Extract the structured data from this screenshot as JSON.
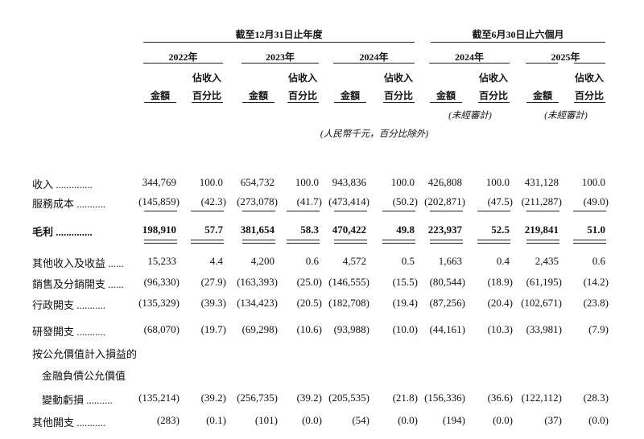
{
  "header": {
    "group_full_year": "截至12月31日止年度",
    "group_half_year": "截至6月30日止六個月",
    "years": [
      "2022年",
      "2023年",
      "2024年",
      "2024年",
      "2025年"
    ],
    "amount_label": "金額",
    "pct_label_line1": "佔收入",
    "pct_label_line2": "百分比",
    "unaudited": "(未經審計)",
    "unit_note": "(人民幣千元，百分比除外)"
  },
  "rows": [
    {
      "label": "收入 ..............",
      "values": [
        "344,769",
        "100.0",
        "654,732",
        "100.0",
        "943,836",
        "100.0",
        "426,808",
        "100.0",
        "431,128",
        "100.0"
      ]
    },
    {
      "label": "服務成本 ...........",
      "values": [
        "(145,859)",
        "(42.3)",
        "(273,078)",
        "(41.7)",
        "(473,414)",
        "(50.2)",
        "(202,871)",
        "(47.5)",
        "(211,287)",
        "(49.0)"
      ]
    },
    {
      "label": "毛利 ..............",
      "bold": true,
      "values": [
        "198,910",
        "57.7",
        "381,654",
        "58.3",
        "470,422",
        "49.8",
        "223,937",
        "52.5",
        "219,841",
        "51.0"
      ]
    },
    {
      "label": "其他收入及收益 ......",
      "values": [
        "15,233",
        "4.4",
        "4,200",
        "0.6",
        "4,572",
        "0.5",
        "1,663",
        "0.4",
        "2,435",
        "0.6"
      ]
    },
    {
      "label": "銷售及分銷開支 ......",
      "values": [
        "(96,330)",
        "(27.9)",
        "(163,393)",
        "(25.0)",
        "(146,555)",
        "(15.5)",
        "(80,544)",
        "(18.9)",
        "(61,195)",
        "(14.2)"
      ]
    },
    {
      "label": "行政開支 ...........",
      "values": [
        "(135,329)",
        "(39.3)",
        "(134,423)",
        "(20.5)",
        "(182,708)",
        "(19.4)",
        "(87,256)",
        "(20.4)",
        "(102,671)",
        "(23.8)"
      ]
    },
    {
      "label": "研發開支 ...........",
      "values": [
        "(68,070)",
        "(19.7)",
        "(69,298)",
        "(10.6)",
        "(93,988)",
        "(10.0)",
        "(44,161)",
        "(10.3)",
        "(33,981)",
        "(7.9)"
      ]
    },
    {
      "label": "按公允價值計入損益的",
      "values": []
    },
    {
      "label": "金融負債公允價值",
      "indent": true,
      "values": []
    },
    {
      "label": "變動虧損 ..........",
      "indent": true,
      "values": [
        "(135,214)",
        "(39.2)",
        "(256,735)",
        "(39.2)",
        "(205,535)",
        "(21.8)",
        "(156,336)",
        "(36.6)",
        "(122,112)",
        "(28.3)"
      ]
    },
    {
      "label": "其他開支 ...........",
      "values": [
        "(283)",
        "(0.1)",
        "(101)",
        "(0.0)",
        "(54)",
        "(0.0)",
        "(194)",
        "(0.0)",
        "(37)",
        "(0.0)"
      ]
    }
  ]
}
